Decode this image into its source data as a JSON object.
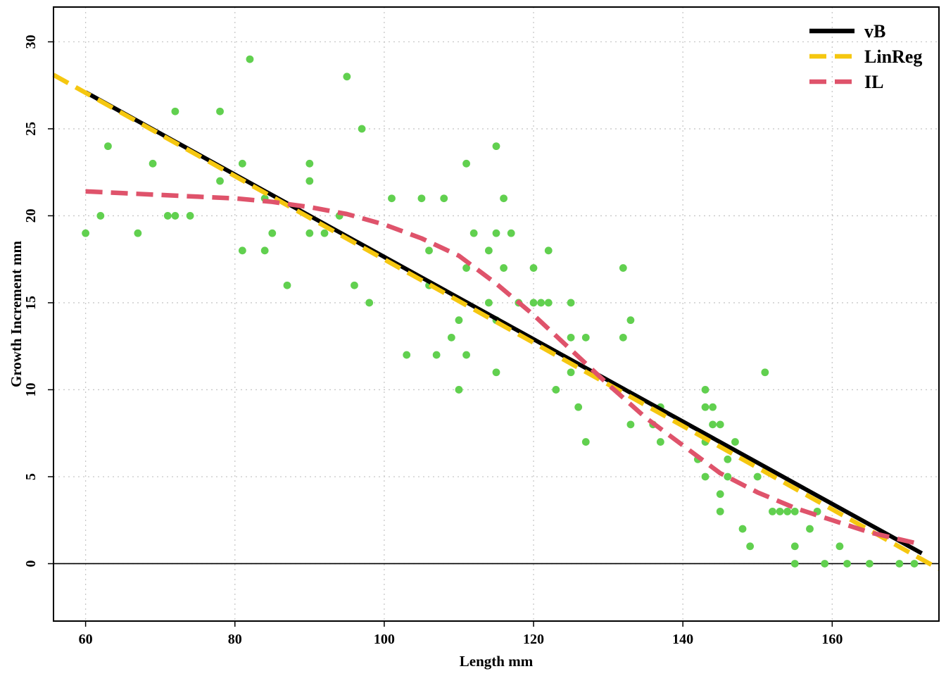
{
  "chart_data": {
    "type": "scatter",
    "xlabel": "Length mm",
    "ylabel": "Growth Increment mm",
    "xlim": [
      55.7,
      174.3
    ],
    "ylim": [
      -3.3,
      32.0
    ],
    "x_ticks": [
      60,
      80,
      100,
      120,
      140,
      160
    ],
    "y_ticks": [
      0,
      5,
      10,
      15,
      20,
      25,
      30
    ],
    "x_tick_labels": [
      "60",
      "80",
      "100",
      "120",
      "140",
      "160"
    ],
    "y_tick_labels": [
      "0",
      "5",
      "10",
      "15",
      "20",
      "25",
      "30"
    ],
    "grid": true,
    "reference_line_y": 0,
    "legend_position": "top-right",
    "points": {
      "color": "#61d04f",
      "x": [
        60,
        62,
        63,
        67,
        69,
        71,
        72,
        72,
        74,
        78,
        78,
        81,
        81,
        82,
        84,
        84,
        85,
        87,
        90,
        90,
        90,
        92,
        94,
        95,
        96,
        97,
        98,
        101,
        103,
        105,
        106,
        106,
        107,
        108,
        109,
        110,
        110,
        111,
        111,
        111,
        112,
        114,
        114,
        115,
        115,
        115,
        115,
        116,
        116,
        117,
        118,
        120,
        120,
        121,
        122,
        122,
        123,
        125,
        125,
        125,
        126,
        127,
        127,
        132,
        132,
        133,
        133,
        136,
        137,
        137,
        142,
        143,
        143,
        143,
        143,
        144,
        144,
        145,
        145,
        145,
        146,
        146,
        147,
        148,
        149,
        150,
        151,
        152,
        153,
        154,
        155,
        155,
        155,
        157,
        158,
        159,
        161,
        162,
        165,
        169,
        171
      ],
      "y": [
        19,
        20,
        24,
        19,
        23,
        20,
        20,
        26,
        20,
        26,
        22,
        23,
        18,
        29,
        21,
        18,
        19,
        16,
        23,
        22,
        19,
        19,
        20,
        28,
        16,
        25,
        15,
        21,
        12,
        21,
        16,
        18,
        12,
        21,
        13,
        14,
        10,
        12,
        17,
        23,
        19,
        18,
        15,
        24,
        19,
        14,
        11,
        21,
        17,
        19,
        15,
        17,
        15,
        15,
        15,
        18,
        10,
        15,
        13,
        11,
        9,
        13,
        7,
        17,
        13,
        14,
        8,
        8,
        9,
        7,
        6,
        10,
        9,
        7,
        5,
        9,
        8,
        8,
        4,
        3,
        6,
        5,
        7,
        2,
        1,
        5,
        11,
        3,
        3,
        3,
        3,
        1,
        0,
        2,
        3,
        0,
        1,
        0,
        0,
        0,
        0
      ]
    },
    "series": [
      {
        "name": "vB",
        "color": "#000000",
        "dash": "solid",
        "x": [
          60,
          172
        ],
        "y": [
          27.1,
          0.6
        ]
      },
      {
        "name": "LinReg",
        "color": "#f5c710",
        "dash": "dashed",
        "x": [
          55.7,
          174.3
        ],
        "y": [
          28.1,
          -0.3
        ]
      },
      {
        "name": "IL",
        "color": "#df536b",
        "dash": "dashed",
        "x": [
          60,
          65,
          70,
          75,
          80,
          85,
          90,
          95,
          100,
          105,
          110,
          115,
          120,
          125,
          130,
          135,
          140,
          145,
          150,
          155,
          160,
          165,
          171
        ],
        "y": [
          21.4,
          21.3,
          21.2,
          21.1,
          21.0,
          20.8,
          20.5,
          20.1,
          19.5,
          18.7,
          17.7,
          16.1,
          14.3,
          12.3,
          10.3,
          8.4,
          6.8,
          5.2,
          4.1,
          3.2,
          2.5,
          1.8,
          1.2
        ]
      }
    ]
  }
}
